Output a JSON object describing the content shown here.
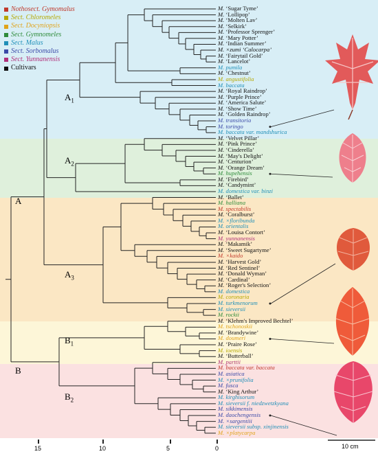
{
  "legend": [
    {
      "label": "Nothosect. Gymomalus",
      "color": "#c0392b"
    },
    {
      "label": "Sect. Chloromeles",
      "color": "#b5a800"
    },
    {
      "label": "Sect. Docyniopsis",
      "color": "#e0a31a"
    },
    {
      "label": "Sect. Gymnomeles",
      "color": "#2e8b3a"
    },
    {
      "label": "Sect. Malus",
      "color": "#1f8fb8"
    },
    {
      "label": "Sect. Sorbomalus",
      "color": "#3b4aa8"
    },
    {
      "label": "Sect. Yunnanensis",
      "color": "#b0307a"
    },
    {
      "label": "Cultivars",
      "color": "#111111"
    }
  ],
  "genus_abbrev": "M.",
  "leaves": [
    {
      "name": "‘Sugar Tyme’",
      "color": "#111111"
    },
    {
      "name": "‘Lollipop’",
      "color": "#111111"
    },
    {
      "name": "‘Molten Lav’",
      "color": "#111111"
    },
    {
      "name": "‘Selkirk’",
      "color": "#111111"
    },
    {
      "name": "‘Professor Sprenger’",
      "color": "#111111"
    },
    {
      "name": "‘Mary Potter’",
      "color": "#111111"
    },
    {
      "name": "‘Indian Summer’",
      "color": "#111111"
    },
    {
      "name": "×zumi ‘Calocarpa’",
      "color": "#111111"
    },
    {
      "name": "‘Fairytail Gold’",
      "color": "#111111"
    },
    {
      "name": "‘Lancelot’",
      "color": "#111111"
    },
    {
      "name": "pumila",
      "color": "#1f8fb8"
    },
    {
      "name": "‘Chestnut’",
      "color": "#111111"
    },
    {
      "name": "angustifolia",
      "color": "#b5a800"
    },
    {
      "name": "baccata",
      "color": "#1f8fb8"
    },
    {
      "name": "‘Royal Raindrop’",
      "color": "#111111"
    },
    {
      "name": "‘Purple Prince’",
      "color": "#111111"
    },
    {
      "name": "‘America Salute’",
      "color": "#111111"
    },
    {
      "name": "‘Show Time’",
      "color": "#111111"
    },
    {
      "name": "‘Golden Raindrop’",
      "color": "#111111"
    },
    {
      "name": "transitoria",
      "color": "#3b4aa8"
    },
    {
      "name": "toringo",
      "color": "#3b4aa8"
    },
    {
      "name": "baccata var. mandshurica",
      "color": "#1f8fb8"
    },
    {
      "name": "‘Velvet Pillar’",
      "color": "#111111"
    },
    {
      "name": "‘Pink Prince’",
      "color": "#111111"
    },
    {
      "name": "‘Cinderella’",
      "color": "#111111"
    },
    {
      "name": "‘May's Delight’",
      "color": "#111111"
    },
    {
      "name": "‘Centurion’",
      "color": "#111111"
    },
    {
      "name": "‘Orange Dream’",
      "color": "#111111"
    },
    {
      "name": "hupehensis",
      "color": "#2e8b3a"
    },
    {
      "name": "‘Firebird’",
      "color": "#111111"
    },
    {
      "name": "‘Candymint’",
      "color": "#111111"
    },
    {
      "name": "domestica var. binzi",
      "color": "#1f8fb8"
    },
    {
      "name": "‘Ballet’",
      "color": "#111111"
    },
    {
      "name": "halliana",
      "color": "#2e8b3a"
    },
    {
      "name": "spectabilis",
      "color": "#c0392b"
    },
    {
      "name": "‘Coralburst’",
      "color": "#111111"
    },
    {
      "name": "×floribunda",
      "color": "#1f8fb8"
    },
    {
      "name": "orientalis",
      "color": "#1f8fb8"
    },
    {
      "name": "‘Louisa Contort’",
      "color": "#111111"
    },
    {
      "name": "yunnanensis",
      "color": "#b0307a"
    },
    {
      "name": "‘Makamik’",
      "color": "#111111"
    },
    {
      "name": "‘Sweet Sugartyme’",
      "color": "#111111"
    },
    {
      "name": "×kaido",
      "color": "#c0392b"
    },
    {
      "name": "‘Harvest Gold’",
      "color": "#111111"
    },
    {
      "name": "‘Red Sentinel’",
      "color": "#111111"
    },
    {
      "name": "‘Donald Wyman’",
      "color": "#111111"
    },
    {
      "name": "‘Cardinal’",
      "color": "#111111"
    },
    {
      "name": "‘Roger's Selection’",
      "color": "#111111"
    },
    {
      "name": "domestica",
      "color": "#1f8fb8"
    },
    {
      "name": "coronaria",
      "color": "#b5a800"
    },
    {
      "name": "turkmenorum",
      "color": "#1f8fb8"
    },
    {
      "name": "sieversii",
      "color": "#1f8fb8"
    },
    {
      "name": "rockii",
      "color": "#2e8b3a"
    },
    {
      "name": "‘Klehm's Improved Bechtel’",
      "color": "#111111"
    },
    {
      "name": "tschonoskii",
      "color": "#e0a31a"
    },
    {
      "name": "‘Brandywine’",
      "color": "#111111"
    },
    {
      "name": "doumeri",
      "color": "#e0a31a"
    },
    {
      "name": "‘Praire Rose’",
      "color": "#111111"
    },
    {
      "name": "ioensis",
      "color": "#b5a800"
    },
    {
      "name": "‘Butterball’",
      "color": "#111111"
    },
    {
      "name": "parttii",
      "color": "#b0307a"
    },
    {
      "name": "baccata var. baccata",
      "color": "#c0392b"
    },
    {
      "name": "asiatica",
      "color": "#3b4aa8"
    },
    {
      "name": "×prunifolia",
      "color": "#1f8fb8"
    },
    {
      "name": "fusca",
      "color": "#3b4aa8"
    },
    {
      "name": "‘King Arthur’",
      "color": "#111111"
    },
    {
      "name": "kirghisorum",
      "color": "#1f8fb8"
    },
    {
      "name": "sieversii f. niedzwetzkyana",
      "color": "#1f8fb8"
    },
    {
      "name": "sikkimensis",
      "color": "#3b4aa8"
    },
    {
      "name": "daochengensis",
      "color": "#3b4aa8"
    },
    {
      "name": "×sargentiii",
      "color": "#3b4aa8"
    },
    {
      "name": "sieversii subsp. xinjinensis",
      "color": "#1f8fb8"
    },
    {
      "name": "×platycarpa",
      "color": "#e0a31a"
    }
  ],
  "clades": {
    "root": "A",
    "b": "B",
    "a1_main": "A",
    "a1_sub": "1",
    "a2_main": "A",
    "a2_sub": "2",
    "a3_main": "A",
    "a3_sub": "3",
    "b1_main": "B",
    "b1_sub": "1",
    "b2_main": "B",
    "b2_sub": "2"
  },
  "band_colors": {
    "a1": "#d8eef6",
    "a2": "#dff0dc",
    "a3": "#fbe7c4",
    "b1": "#fdf6d8",
    "b2": "#fbe1e1"
  },
  "scale_ticks": [
    "15",
    "10",
    "5",
    "0"
  ],
  "scale_bar_label": "10 cm",
  "leaf_colors": {
    "leaf": "#e25a5a",
    "vein": "#f6c7c7"
  }
}
